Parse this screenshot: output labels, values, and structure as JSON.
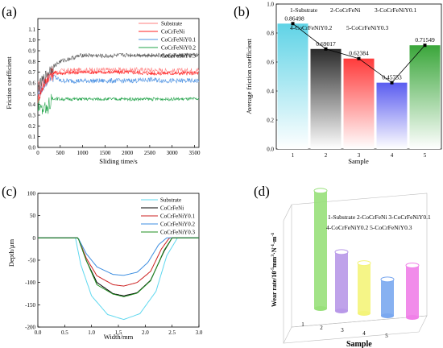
{
  "colors": {
    "substrate": "#ff7f7f",
    "cocrfeni": "#ff2020",
    "y01": "#4a90e2",
    "y02": "#22a34a",
    "y03": "#555555",
    "bar1": "#5fd3e6",
    "bar2": "#2b2b2b",
    "bar3": "#ff3b3b",
    "bar4": "#5a5cf0",
    "bar5": "#3aa63a",
    "c_sub": "#5fd8ef",
    "c_ni": "#000000",
    "c_y01": "#cc2020",
    "c_y02": "#3d8ee0",
    "c_y03": "#1f8f1f"
  },
  "chart_data": [
    {
      "panel": "(a)",
      "type": "line",
      "xlabel": "Sliding time/s",
      "ylabel": "Friction coefficient",
      "xlim": [
        0,
        3600
      ],
      "ylim": [
        0.0,
        1.2
      ],
      "xticks": [
        "0",
        "500",
        "1000",
        "1500",
        "2000",
        "2500",
        "3000",
        "3500"
      ],
      "yticks": [
        "0.0",
        "0.1",
        "0.2",
        "0.3",
        "0.4",
        "0.5",
        "0.6",
        "0.7",
        "0.8",
        "0.9",
        "1.0",
        "1.1"
      ],
      "legend": [
        "Substrate",
        "CoCrFeNi",
        "CoCrFeNiY0.1",
        "CoCrFeNiY0.2",
        "CoCrFeNiY0.3"
      ],
      "legend_position": "top-right",
      "series": [
        {
          "name": "Substrate",
          "x": [
            0,
            150,
            300,
            500,
            1000,
            1500,
            2000,
            2500,
            3000,
            3600
          ],
          "values": [
            0.55,
            0.62,
            0.68,
            0.71,
            0.72,
            0.72,
            0.72,
            0.72,
            0.71,
            0.72
          ]
        },
        {
          "name": "CoCrFeNi",
          "x": [
            0,
            150,
            300,
            500,
            1000,
            1500,
            2000,
            2500,
            3000,
            3600
          ],
          "values": [
            0.45,
            0.6,
            0.7,
            0.69,
            0.7,
            0.7,
            0.7,
            0.69,
            0.69,
            0.69
          ]
        },
        {
          "name": "CoCrFeNiY0.1",
          "x": [
            0,
            150,
            300,
            500,
            1000,
            1500,
            2000,
            2500,
            3000,
            3600
          ],
          "values": [
            0.5,
            0.6,
            0.68,
            0.62,
            0.62,
            0.62,
            0.62,
            0.63,
            0.62,
            0.62
          ]
        },
        {
          "name": "CoCrFeNiY0.2",
          "x": [
            0,
            150,
            300,
            500,
            1000,
            1500,
            2000,
            2500,
            3000,
            3600
          ],
          "values": [
            0.42,
            0.45,
            0.46,
            0.45,
            0.45,
            0.45,
            0.45,
            0.45,
            0.45,
            0.45
          ]
        },
        {
          "name": "CoCrFeNiY0.3",
          "x": [
            0,
            150,
            300,
            500,
            1000,
            1500,
            2000,
            2500,
            3000,
            3600
          ],
          "values": [
            0.55,
            0.65,
            0.74,
            0.8,
            0.86,
            0.85,
            0.86,
            0.86,
            0.85,
            0.86
          ]
        }
      ]
    },
    {
      "panel": "(b)",
      "type": "bar",
      "xlabel": "Sample",
      "ylabel": "Average friction coefficient",
      "categories": [
        "1",
        "2",
        "3",
        "4",
        "5"
      ],
      "values": [
        0.86498,
        0.69017,
        0.62384,
        0.45753,
        0.71549
      ],
      "data_labels": [
        "0.86498",
        "0.69017",
        "0.62384",
        "0.45753",
        "0.71549"
      ],
      "ylim": [
        0.0,
        1.0
      ],
      "yticks": [
        "0.0",
        "0.2",
        "0.4",
        "0.6",
        "0.8",
        "1.0"
      ],
      "legend_text": [
        {
          "text": "1-Substrate",
          "color": "#5fd3e6"
        },
        {
          "text": "2-CoCrFeNi",
          "color": "#000000"
        },
        {
          "text": "3-CoCrFeNiY0.1",
          "color": "#e02020"
        },
        {
          "text": "4-CoCrFeNiY0.2",
          "color": "#3a3ae0"
        },
        {
          "text": "5-CoCrFeNiY0.3",
          "color": "#2f9a2f"
        }
      ]
    },
    {
      "panel": "(c)",
      "type": "line",
      "xlabel": "Width/mm",
      "ylabel": "Depth/μm",
      "xlim": [
        0.0,
        3.0
      ],
      "ylim": [
        -200,
        100
      ],
      "xticks": [
        "0.0",
        "0.5",
        "1.0",
        "1.5",
        "2.0",
        "2.5",
        "3.0"
      ],
      "yticks": [
        "100",
        "50",
        "0",
        "-50",
        "-100",
        "-150",
        "-200"
      ],
      "legend": [
        "Substrate",
        "CoCrFeNi",
        "CoCrFeNiY0.1",
        "CoCrFeNiY0.2",
        "CoCrFeNiY0.3"
      ],
      "legend_position": "top-right",
      "series": [
        {
          "name": "Substrate",
          "x": [
            0.0,
            0.7,
            0.8,
            1.0,
            1.3,
            1.6,
            1.9,
            2.2,
            2.4,
            2.6,
            3.0
          ],
          "values": [
            0,
            0,
            -60,
            -130,
            -172,
            -183,
            -170,
            -120,
            -40,
            0,
            0
          ]
        },
        {
          "name": "CoCrFeNi",
          "x": [
            0.0,
            0.75,
            0.9,
            1.1,
            1.4,
            1.6,
            1.85,
            2.1,
            2.35,
            2.5,
            3.0
          ],
          "values": [
            0,
            0,
            -50,
            -100,
            -125,
            -130,
            -123,
            -95,
            -30,
            0,
            0
          ]
        },
        {
          "name": "CoCrFeNiY0.1",
          "x": [
            0.0,
            0.75,
            0.9,
            1.1,
            1.4,
            1.6,
            1.85,
            2.1,
            2.3,
            2.45,
            3.0
          ],
          "values": [
            0,
            0,
            -45,
            -85,
            -105,
            -108,
            -100,
            -75,
            -25,
            0,
            0
          ]
        },
        {
          "name": "CoCrFeNiY0.2",
          "x": [
            0.0,
            0.75,
            0.9,
            1.1,
            1.4,
            1.6,
            1.85,
            2.05,
            2.25,
            2.4,
            3.0
          ],
          "values": [
            0,
            0,
            -35,
            -65,
            -82,
            -84,
            -77,
            -55,
            -15,
            0,
            0
          ]
        },
        {
          "name": "CoCrFeNiY0.3",
          "x": [
            0.0,
            0.75,
            0.9,
            1.1,
            1.4,
            1.6,
            1.85,
            2.1,
            2.35,
            2.5,
            3.0
          ],
          "values": [
            0,
            0,
            -50,
            -105,
            -126,
            -132,
            -124,
            -96,
            -28,
            0,
            0
          ]
        }
      ]
    },
    {
      "panel": "(d)",
      "type": "bar",
      "xlabel": "Sample",
      "ylabel": "Wear rate/10⁻⁵mm³·N⁻¹·m⁻¹",
      "categories": [
        "1",
        "2",
        "3",
        "4",
        "5"
      ],
      "values": [
        3.4,
        1.7,
        1.45,
        1.05,
        1.5
      ],
      "colors": [
        "#98e07a",
        "#b898e8",
        "#f4f47a",
        "#7aa8f0",
        "#f080e8"
      ],
      "legend_text": [
        "1-Substrate 2-CoCrFeNi 3-CoCrFeNiY0.1",
        "4-CoCrFeNiY0.2  5-CoCrFeNiY0.3"
      ]
    }
  ],
  "panels": {
    "a": {
      "label": "(a)",
      "legend": [
        "Substrate",
        "CoCrFeNi",
        "CoCrFeNiY0.1",
        "CoCrFeNiY0.2",
        "CoCrFeNiY0.3"
      ],
      "xlabel": "Sliding time/s",
      "ylabel": "Friction coefficient"
    },
    "b": {
      "label": "(b)",
      "xlabel": "Sample",
      "ylabel": "Average friction coefficient"
    },
    "c": {
      "label": "(c)",
      "xlabel": "Width/mm",
      "ylabel": "Depth/μm"
    },
    "d": {
      "label": "(d)",
      "xlabel": "Sample",
      "ylabel": "Wear rate/10",
      "ylabel_sup1": "-5",
      "ylabel_mid": "mm",
      "ylabel_sup2": "3",
      "ylabel_mid2": "·N",
      "ylabel_sup3": "-1",
      "ylabel_mid3": "·m",
      "ylabel_sup4": "-1"
    }
  }
}
